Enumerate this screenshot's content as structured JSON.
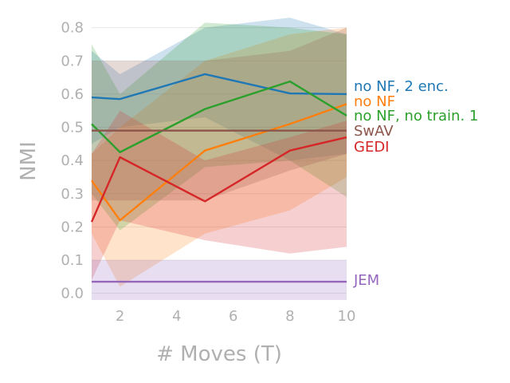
{
  "chart_data": {
    "type": "line",
    "xlabel": "# Moves (T)",
    "ylabel": "NMI",
    "xlim": [
      1,
      10
    ],
    "ylim": [
      -0.02,
      0.84
    ],
    "xticks": [
      "2",
      "4",
      "6",
      "8",
      "10"
    ],
    "yticks": [
      "0.0",
      "0.1",
      "0.2",
      "0.3",
      "0.4",
      "0.5",
      "0.6",
      "0.7",
      "0.8"
    ],
    "grid": "horizontal",
    "legend_placement": "right, at line ends",
    "series": [
      {
        "name": "no NF, 2 enc.",
        "color": "#1f77b4",
        "x": [
          1,
          2,
          5,
          8,
          10
        ],
        "y": [
          0.59,
          0.585,
          0.66,
          0.602,
          0.6
        ],
        "upper": [
          0.73,
          0.66,
          0.8,
          0.83,
          0.78
        ],
        "lower": [
          0.45,
          0.5,
          0.53,
          0.4,
          0.42
        ]
      },
      {
        "name": "no NF",
        "color": "#ff7f0e",
        "x": [
          1,
          2,
          5,
          8,
          10
        ],
        "y": [
          0.34,
          0.22,
          0.43,
          0.51,
          0.57
        ],
        "upper": [
          0.42,
          0.5,
          0.7,
          0.78,
          0.8
        ],
        "lower": [
          0.18,
          0.02,
          0.18,
          0.25,
          0.35
        ]
      },
      {
        "name": "no NF, no train. 1",
        "color": "#2ca02c",
        "x": [
          1,
          2,
          5,
          8,
          10
        ],
        "y": [
          0.51,
          0.425,
          0.555,
          0.638,
          0.535
        ],
        "upper": [
          0.75,
          0.6,
          0.815,
          0.8,
          0.78
        ],
        "lower": [
          0.3,
          0.19,
          0.38,
          0.4,
          0.29
        ]
      },
      {
        "name": "SwAV",
        "color": "#8c564b",
        "x": [
          1,
          2,
          5,
          8,
          10
        ],
        "y": [
          0.49,
          0.49,
          0.49,
          0.49,
          0.49
        ],
        "upper": [
          0.7,
          0.7,
          0.7,
          0.73,
          0.8
        ],
        "lower": [
          0.28,
          0.28,
          0.28,
          0.37,
          0.42
        ]
      },
      {
        "name": "GEDI",
        "color": "#d62728",
        "x": [
          1,
          2,
          5,
          8,
          10
        ],
        "y": [
          0.215,
          0.41,
          0.277,
          0.43,
          0.47
        ],
        "upper": [
          0.42,
          0.55,
          0.4,
          0.47,
          0.52
        ],
        "lower": [
          0.04,
          0.22,
          0.16,
          0.12,
          0.14
        ]
      },
      {
        "name": "JEM",
        "color": "#9467bd",
        "x": [
          1,
          2,
          5,
          8,
          10
        ],
        "y": [
          0.035,
          0.035,
          0.035,
          0.035,
          0.035
        ],
        "upper": [
          0.1,
          0.1,
          0.1,
          0.1,
          0.1
        ],
        "lower": [
          -0.02,
          -0.02,
          -0.02,
          -0.02,
          -0.02
        ]
      }
    ]
  }
}
